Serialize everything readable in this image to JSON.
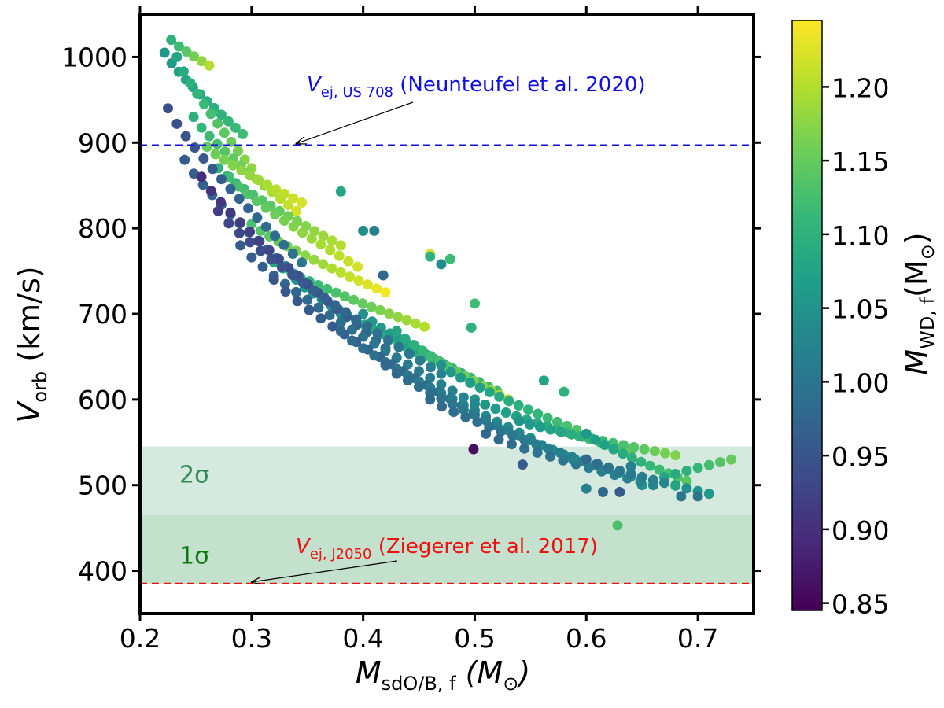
{
  "chart_data": {
    "type": "scatter",
    "title": "",
    "xlabel": {
      "main": "M",
      "sub": "sdO/B, f",
      "unit": "(M",
      "unit_sym": "⊙",
      "unit_close": ")"
    },
    "ylabel": {
      "main": "V",
      "sub": "orb",
      "unit": "(km/s)"
    },
    "xlim": [
      0.2,
      0.75
    ],
    "ylim": [
      350,
      1050
    ],
    "xticks": [
      0.2,
      0.3,
      0.4,
      0.5,
      0.6,
      0.7
    ],
    "xtick_labels": [
      "0.2",
      "0.3",
      "0.4",
      "0.5",
      "0.6",
      "0.7"
    ],
    "yticks": [
      400,
      500,
      600,
      700,
      800,
      900,
      1000
    ],
    "ytick_labels": [
      "400",
      "500",
      "600",
      "700",
      "800",
      "900",
      "1000"
    ],
    "grid": false,
    "colormap": "viridis",
    "colorbar": {
      "label": {
        "main": "M",
        "sub": "WD, f",
        "unit": "(M",
        "unit_sym": "⊙",
        "unit_close": ")"
      },
      "range": [
        0.845,
        1.245
      ],
      "ticks": [
        0.85,
        0.9,
        0.95,
        1.0,
        1.05,
        1.1,
        1.15,
        1.2
      ],
      "tick_labels": [
        "0.85",
        "0.90",
        "0.95",
        "1.00",
        "1.05",
        "1.10",
        "1.15",
        "1.20"
      ]
    },
    "bands": [
      {
        "label": "2σ",
        "y0": 465,
        "y1": 545,
        "color": "#d5e9de",
        "label_color": "#2e8b57"
      },
      {
        "label": "1σ",
        "y0": 385,
        "y1": 465,
        "color": "#c3e1cd",
        "label_color": "#0a7a0a"
      }
    ],
    "hlines": [
      {
        "y": 897,
        "color": "#1010e0",
        "text_main": "V",
        "text_sub": "ej, US 708",
        "text_rest": "(Neunteufel et al. 2020)",
        "arrow_to_x": 0.34
      },
      {
        "y": 385,
        "color": "#ee1111",
        "text_main": "V",
        "text_sub": "ej, J2050",
        "text_rest": "(Ziegerer et al. 2017)",
        "arrow_to_x": 0.3
      }
    ],
    "tracks": [
      {
        "x0": 0.222,
        "x1": 0.292,
        "y0": 1005,
        "y1": 910,
        "c0": 1.06,
        "c1": 1.12,
        "n": 12
      },
      {
        "x0": 0.228,
        "x1": 0.262,
        "y0": 1020,
        "y1": 990,
        "c0": 1.1,
        "c1": 1.2,
        "n": 6
      },
      {
        "x0": 0.233,
        "x1": 0.3,
        "y0": 1000,
        "y1": 870,
        "c0": 1.08,
        "c1": 1.18,
        "n": 12
      },
      {
        "x0": 0.248,
        "x1": 0.34,
        "y0": 930,
        "y1": 820,
        "c0": 1.1,
        "c1": 1.22,
        "n": 14
      },
      {
        "x0": 0.26,
        "x1": 0.345,
        "y0": 895,
        "y1": 830,
        "c0": 1.15,
        "c1": 1.22,
        "n": 12
      },
      {
        "x0": 0.27,
        "x1": 0.38,
        "y0": 870,
        "y1": 780,
        "c0": 1.1,
        "c1": 1.2,
        "n": 15
      },
      {
        "x0": 0.28,
        "x1": 0.395,
        "y0": 860,
        "y1": 755,
        "c0": 1.12,
        "c1": 1.22,
        "n": 15
      },
      {
        "x0": 0.3,
        "x1": 0.42,
        "y0": 805,
        "y1": 725,
        "c0": 1.13,
        "c1": 1.24,
        "n": 16
      },
      {
        "x0": 0.32,
        "x1": 0.455,
        "y0": 760,
        "y1": 685,
        "c0": 1.08,
        "c1": 1.2,
        "n": 18
      },
      {
        "x0": 0.34,
        "x1": 0.47,
        "y0": 740,
        "y1": 640,
        "c0": 1.05,
        "c1": 1.12,
        "n": 18
      },
      {
        "x0": 0.4,
        "x1": 0.52,
        "y0": 700,
        "y1": 610,
        "c0": 1.05,
        "c1": 1.12,
        "n": 16
      },
      {
        "x0": 0.43,
        "x1": 0.53,
        "y0": 680,
        "y1": 600,
        "c0": 1.08,
        "c1": 1.2,
        "n": 14
      },
      {
        "x0": 0.47,
        "x1": 0.6,
        "y0": 640,
        "y1": 560,
        "c0": 1.05,
        "c1": 1.14,
        "n": 16
      },
      {
        "x0": 0.5,
        "x1": 0.64,
        "y0": 600,
        "y1": 540,
        "c0": 1.05,
        "c1": 1.15,
        "n": 16
      },
      {
        "x0": 0.54,
        "x1": 0.68,
        "y0": 575,
        "y1": 535,
        "c0": 1.05,
        "c1": 1.17,
        "n": 16
      },
      {
        "x0": 0.6,
        "x1": 0.69,
        "y0": 560,
        "y1": 505,
        "c0": 1.06,
        "c1": 1.14,
        "n": 12
      },
      {
        "x0": 0.65,
        "x1": 0.73,
        "y0": 500,
        "y1": 530,
        "c0": 1.05,
        "c1": 1.15,
        "n": 9
      },
      {
        "x0": 0.225,
        "x1": 0.345,
        "y0": 940,
        "y1": 760,
        "c0": 0.94,
        "c1": 1.0,
        "n": 16
      },
      {
        "x0": 0.24,
        "x1": 0.38,
        "y0": 880,
        "y1": 700,
        "c0": 0.96,
        "c1": 1.04,
        "n": 18
      },
      {
        "x0": 0.255,
        "x1": 0.42,
        "y0": 860,
        "y1": 660,
        "c0": 0.9,
        "c1": 0.98,
        "n": 20
      },
      {
        "x0": 0.27,
        "x1": 0.47,
        "y0": 820,
        "y1": 630,
        "c0": 0.92,
        "c1": 1.02,
        "n": 22
      },
      {
        "x0": 0.29,
        "x1": 0.5,
        "y0": 780,
        "y1": 595,
        "c0": 0.96,
        "c1": 1.03,
        "n": 22
      },
      {
        "x0": 0.32,
        "x1": 0.52,
        "y0": 740,
        "y1": 570,
        "c0": 0.95,
        "c1": 1.0,
        "n": 20
      },
      {
        "x0": 0.38,
        "x1": 0.55,
        "y0": 680,
        "y1": 555,
        "c0": 0.98,
        "c1": 1.05,
        "n": 18
      },
      {
        "x0": 0.42,
        "x1": 0.59,
        "y0": 640,
        "y1": 530,
        "c0": 0.98,
        "c1": 1.04,
        "n": 18
      },
      {
        "x0": 0.46,
        "x1": 0.64,
        "y0": 600,
        "y1": 510,
        "c0": 0.98,
        "c1": 1.04,
        "n": 18
      },
      {
        "x0": 0.51,
        "x1": 0.66,
        "y0": 560,
        "y1": 500,
        "c0": 0.98,
        "c1": 1.03,
        "n": 14
      },
      {
        "x0": 0.6,
        "x1": 0.71,
        "y0": 530,
        "y1": 490,
        "c0": 0.98,
        "c1": 1.06,
        "n": 12
      }
    ],
    "points": [
      {
        "x": 0.38,
        "y": 843,
        "c": 1.08
      },
      {
        "x": 0.4,
        "y": 797,
        "c": 1.04
      },
      {
        "x": 0.41,
        "y": 797,
        "c": 1.02
      },
      {
        "x": 0.418,
        "y": 745,
        "c": 0.98
      },
      {
        "x": 0.46,
        "y": 770,
        "c": 1.22
      },
      {
        "x": 0.46,
        "y": 767,
        "c": 1.1
      },
      {
        "x": 0.47,
        "y": 758,
        "c": 1.04
      },
      {
        "x": 0.478,
        "y": 764,
        "c": 1.12
      },
      {
        "x": 0.5,
        "y": 712,
        "c": 1.12
      },
      {
        "x": 0.497,
        "y": 684,
        "c": 1.1
      },
      {
        "x": 0.499,
        "y": 542,
        "c": 0.86
      },
      {
        "x": 0.562,
        "y": 622,
        "c": 1.08
      },
      {
        "x": 0.58,
        "y": 609,
        "c": 1.1
      },
      {
        "x": 0.6,
        "y": 496,
        "c": 1.02
      },
      {
        "x": 0.615,
        "y": 492,
        "c": 0.98
      },
      {
        "x": 0.63,
        "y": 492,
        "c": 0.96
      },
      {
        "x": 0.628,
        "y": 453,
        "c": 1.13
      },
      {
        "x": 0.64,
        "y": 522,
        "c": 1.02
      },
      {
        "x": 0.68,
        "y": 500,
        "c": 1.08
      },
      {
        "x": 0.7,
        "y": 487,
        "c": 1.0
      },
      {
        "x": 0.685,
        "y": 487,
        "c": 1.0
      },
      {
        "x": 0.543,
        "y": 524,
        "c": 0.96
      },
      {
        "x": 0.588,
        "y": 530,
        "c": 1.02
      }
    ]
  }
}
